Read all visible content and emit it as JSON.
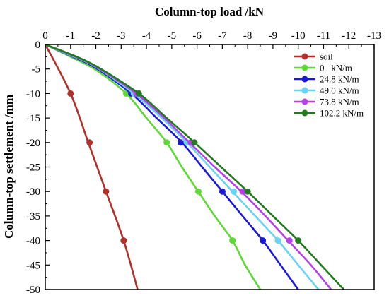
{
  "chart_data": {
    "type": "line",
    "title": "",
    "xlabel": "Column-top load /kN",
    "ylabel": "Column-top settlement /mm",
    "xlim": [
      0,
      -13
    ],
    "ylim": [
      0,
      -50
    ],
    "x_axis_position": "top",
    "x_ticks": [
      0,
      -1,
      -2,
      -3,
      -4,
      -5,
      -6,
      -7,
      -8,
      -9,
      -10,
      -11,
      -12,
      -13
    ],
    "y_ticks": [
      0,
      -5,
      -10,
      -15,
      -20,
      -25,
      -30,
      -35,
      -40,
      -45,
      -50
    ],
    "grid": false,
    "legend_position": "top-right",
    "series": [
      {
        "name": "soil",
        "color": "#b0302a",
        "line": [
          [
            0,
            0
          ],
          [
            -1.0,
            -10
          ],
          [
            -1.7,
            -20
          ],
          [
            -2.4,
            -30
          ],
          [
            -3.1,
            -40
          ],
          [
            -3.65,
            -50
          ]
        ],
        "markers": [
          [
            -1.0,
            -10
          ],
          [
            -1.75,
            -20
          ],
          [
            -2.4,
            -30
          ],
          [
            -3.1,
            -40
          ]
        ]
      },
      {
        "name": "0   kN/m",
        "color": "#5ed835",
        "line": [
          [
            0,
            0
          ],
          [
            -1.0,
            -2.5
          ],
          [
            -2.0,
            -5.2
          ],
          [
            -3.2,
            -10
          ],
          [
            -4.0,
            -15
          ],
          [
            -4.8,
            -20
          ],
          [
            -5.4,
            -25
          ],
          [
            -6.05,
            -30
          ],
          [
            -6.7,
            -35
          ],
          [
            -7.4,
            -40
          ],
          [
            -7.9,
            -45
          ],
          [
            -8.5,
            -50
          ]
        ],
        "markers": [
          [
            -3.2,
            -10
          ],
          [
            -4.8,
            -20
          ],
          [
            -6.05,
            -30
          ],
          [
            -7.4,
            -40
          ]
        ]
      },
      {
        "name": "24.8 kN/m",
        "color": "#1a1ad6",
        "line": [
          [
            0,
            0
          ],
          [
            -1.0,
            -2.3
          ],
          [
            -2.0,
            -4.8
          ],
          [
            -3.4,
            -10
          ],
          [
            -4.4,
            -15
          ],
          [
            -5.4,
            -20
          ],
          [
            -6.2,
            -25
          ],
          [
            -7.0,
            -30
          ],
          [
            -7.8,
            -35
          ],
          [
            -8.6,
            -40
          ],
          [
            -9.3,
            -45
          ],
          [
            -10.0,
            -50
          ]
        ],
        "markers": [
          [
            -3.4,
            -10
          ],
          [
            -5.35,
            -20
          ],
          [
            -7.0,
            -30
          ],
          [
            -8.6,
            -40
          ]
        ]
      },
      {
        "name": "49.0 kN/m",
        "color": "#6ad2f2",
        "line": [
          [
            0,
            0
          ],
          [
            -1.0,
            -2.2
          ],
          [
            -2.0,
            -4.6
          ],
          [
            -3.5,
            -10
          ],
          [
            -4.6,
            -15
          ],
          [
            -5.6,
            -20
          ],
          [
            -6.5,
            -25
          ],
          [
            -7.4,
            -30
          ],
          [
            -8.3,
            -35
          ],
          [
            -9.2,
            -40
          ],
          [
            -10.0,
            -45
          ],
          [
            -10.8,
            -50
          ]
        ],
        "markers": [
          [
            -3.5,
            -10
          ],
          [
            -5.6,
            -20
          ],
          [
            -7.45,
            -30
          ],
          [
            -9.2,
            -40
          ]
        ]
      },
      {
        "name": "73.8 kN/m",
        "color": "#b542e8",
        "line": [
          [
            0,
            0
          ],
          [
            -1.0,
            -2.1
          ],
          [
            -2.0,
            -4.5
          ],
          [
            -3.6,
            -10
          ],
          [
            -4.7,
            -15
          ],
          [
            -5.7,
            -20
          ],
          [
            -6.7,
            -25
          ],
          [
            -7.75,
            -30
          ],
          [
            -8.7,
            -35
          ],
          [
            -9.6,
            -40
          ],
          [
            -10.5,
            -45
          ],
          [
            -11.3,
            -50
          ]
        ],
        "markers": [
          [
            -3.6,
            -10
          ],
          [
            -5.75,
            -20
          ],
          [
            -7.8,
            -30
          ],
          [
            -9.65,
            -40
          ]
        ]
      },
      {
        "name": "102.2 kN/m",
        "color": "#237a1e",
        "line": [
          [
            0,
            0
          ],
          [
            -1.0,
            -2.0
          ],
          [
            -2.0,
            -4.4
          ],
          [
            -3.7,
            -10
          ],
          [
            -4.8,
            -15
          ],
          [
            -5.9,
            -20
          ],
          [
            -6.95,
            -25
          ],
          [
            -8.0,
            -30
          ],
          [
            -9.0,
            -35
          ],
          [
            -10.0,
            -40
          ],
          [
            -10.9,
            -45
          ],
          [
            -11.8,
            -50
          ]
        ],
        "markers": [
          [
            -3.7,
            -10
          ],
          [
            -5.9,
            -20
          ],
          [
            -8.0,
            -30
          ],
          [
            -10.0,
            -40
          ]
        ]
      }
    ]
  }
}
